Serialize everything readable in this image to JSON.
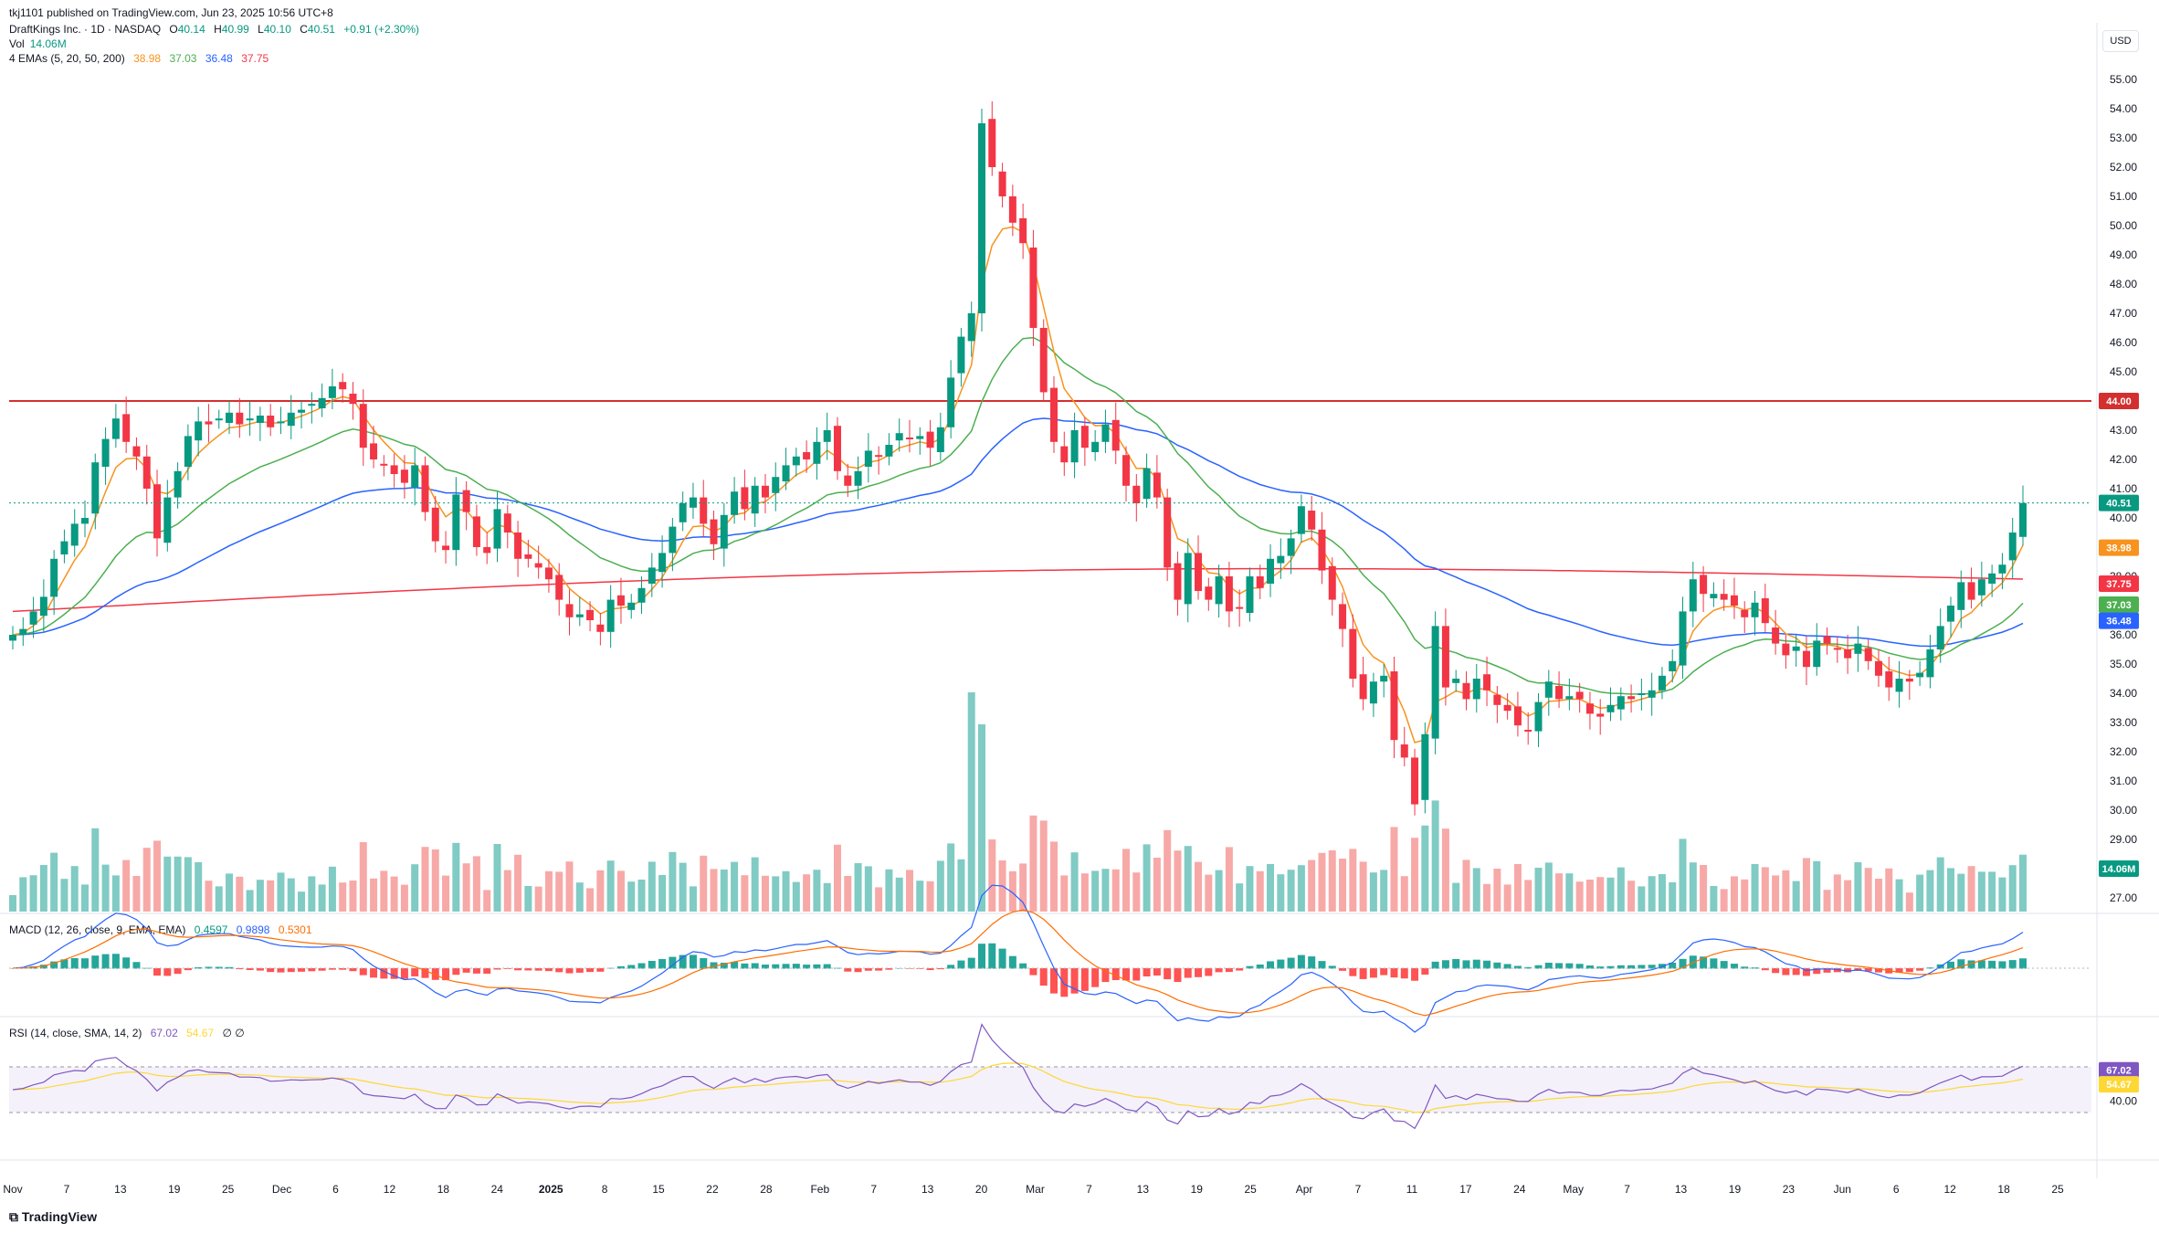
{
  "header": {
    "published": "tkj1101 published on TradingView.com, Jun 23, 2025 10:56 UTC+8",
    "symbol": "DraftKings Inc. · 1D · NASDAQ",
    "ohlc": {
      "o_label": "O",
      "o": "40.14",
      "h_label": "H",
      "h": "40.99",
      "l_label": "L",
      "l": "40.10",
      "c_label": "C",
      "c": "40.51",
      "change": "+0.91 (+2.30%)"
    },
    "vol_label": "Vol",
    "vol_value": "14.06M",
    "ema_label": "4 EMAs (5, 20, 50, 200)",
    "ema_values": [
      "38.98",
      "37.03",
      "36.48",
      "37.75"
    ],
    "macd_label": "MACD (12, 26, close, 9, EMA, EMA)",
    "macd_values": [
      "0.4597",
      "0.9898",
      "0.5301"
    ],
    "rsi_label": "RSI (14, close, SMA, 14, 2)",
    "rsi_values": [
      "67.02",
      "54.67"
    ],
    "rsi_extra": "∅ ∅"
  },
  "currency": "USD",
  "brand": "TradingView",
  "colors": {
    "up": "#089981",
    "down": "#f23645",
    "ema5": "#f7931e",
    "ema20": "#4caf50",
    "ema50": "#2962ff",
    "ema200": "#f23645",
    "resistance": "#d32f2f",
    "rsi": "#7e57c2",
    "rsi_ma": "#fdd835",
    "macd": "#2962ff",
    "signal": "#ff6d00"
  },
  "chart_data": {
    "type": "candlestick",
    "title": "DraftKings Inc. · 1D · NASDAQ",
    "ylim": [
      26.5,
      56
    ],
    "y_ticks": [
      "27.00",
      "28.00",
      "29.00",
      "30.00",
      "31.00",
      "32.00",
      "33.00",
      "34.00",
      "35.00",
      "36.00",
      "37.00",
      "38.00",
      "39.00",
      "40.00",
      "41.00",
      "42.00",
      "43.00",
      "44.00",
      "45.00",
      "46.00",
      "47.00",
      "48.00",
      "49.00",
      "50.00",
      "51.00",
      "52.00",
      "53.00",
      "54.00",
      "55.00"
    ],
    "x_ticks": [
      "Nov",
      "7",
      "13",
      "19",
      "25",
      "Dec",
      "6",
      "12",
      "18",
      "24",
      "2025",
      "8",
      "15",
      "22",
      "28",
      "Feb",
      "7",
      "13",
      "20",
      "Mar",
      "7",
      "13",
      "19",
      "25",
      "Apr",
      "7",
      "11",
      "17",
      "24",
      "May",
      "7",
      "13",
      "19",
      "23",
      "Jun",
      "6",
      "12",
      "18",
      "25"
    ],
    "resistance": {
      "value": 44.0,
      "label": "44.00"
    },
    "price_tags": [
      {
        "label": "40.51",
        "value": 40.51,
        "color": "#089981"
      },
      {
        "label": "38.98",
        "value": 38.98,
        "color": "#f7931e"
      },
      {
        "label": "37.75",
        "value": 37.75,
        "color": "#f23645"
      },
      {
        "label": "37.03",
        "value": 37.03,
        "color": "#4caf50"
      },
      {
        "label": "36.48",
        "value": 36.48,
        "color": "#2962ff"
      },
      {
        "label": "14.06M",
        "value": 28.0,
        "color": "#089981"
      }
    ],
    "closes": [
      36.0,
      36.2,
      36.8,
      37.3,
      38.6,
      39.2,
      39.8,
      40.0,
      41.9,
      42.7,
      43.4,
      42.6,
      42.1,
      41.0,
      39.3,
      40.7,
      41.6,
      42.8,
      43.3,
      43.2,
      43.4,
      43.6,
      43.2,
      43.4,
      43.5,
      43.1,
      43.3,
      43.6,
      43.7,
      43.9,
      44.1,
      44.5,
      44.4,
      43.9,
      42.4,
      42.0,
      41.8,
      41.5,
      41.2,
      41.8,
      40.2,
      39.2,
      38.9,
      40.8,
      40.2,
      39.0,
      38.8,
      40.3,
      39.5,
      38.6,
      38.6,
      38.3,
      37.9,
      37.2,
      36.6,
      36.7,
      36.5,
      36.1,
      37.2,
      37.0,
      37.1,
      37.6,
      38.3,
      38.8,
      39.7,
      40.5,
      40.7,
      39.8,
      39.1,
      40.1,
      40.9,
      40.3,
      41.1,
      40.7,
      41.4,
      41.8,
      42.1,
      42.0,
      42.6,
      43.0,
      41.6,
      41.1,
      41.6,
      42.3,
      42.1,
      42.5,
      42.9,
      42.7,
      42.8,
      42.4,
      43.1,
      44.8,
      46.2,
      47.0,
      53.5,
      52.0,
      51.0,
      50.1,
      49.4,
      46.5,
      44.3,
      42.6,
      41.9,
      43.0,
      42.4,
      42.6,
      43.2,
      42.3,
      41.1,
      40.5,
      41.7,
      40.7,
      38.3,
      37.2,
      38.8,
      37.5,
      37.2,
      38.0,
      36.8,
      36.9,
      38.0,
      37.6,
      38.6,
      38.7,
      39.3,
      40.4,
      39.6,
      38.2,
      37.2,
      36.2,
      34.5,
      33.8,
      34.4,
      34.6,
      32.4,
      31.8,
      30.2,
      32.6,
      36.3,
      34.2,
      34.5,
      33.8,
      34.5,
      34.1,
      33.6,
      33.4,
      32.9,
      32.7,
      33.7,
      34.4,
      33.8,
      33.9,
      33.8,
      33.3,
      33.2,
      33.6,
      33.9,
      33.8,
      34.0,
      34.1,
      34.6,
      35.1,
      36.8,
      37.9,
      37.4,
      37.4,
      37.2,
      37.0,
      36.6,
      37.1,
      36.4,
      35.7,
      35.3,
      35.6,
      34.9,
      35.8,
      35.7,
      35.5,
      35.2,
      35.7,
      35.1,
      34.6,
      34.2,
      34.5,
      34.4,
      34.7,
      35.5,
      36.3,
      37.0,
      37.8,
      37.2,
      37.9,
      38.1,
      38.4,
      39.5,
      40.51
    ]
  }
}
